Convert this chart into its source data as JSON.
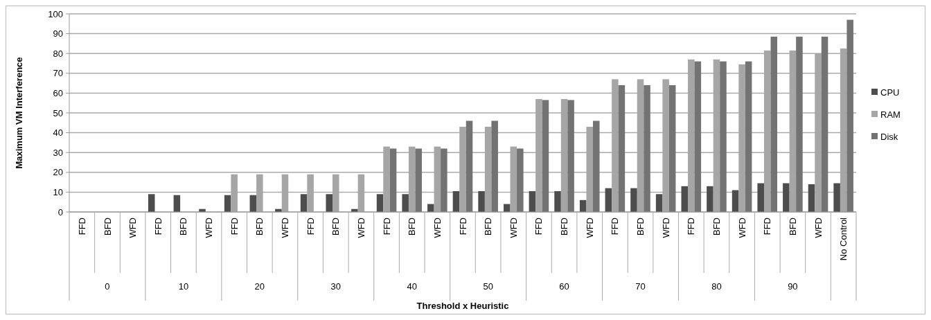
{
  "chart_data": {
    "type": "bar",
    "xlabel": "Threshold x Heuristic",
    "ylabel": "Maximum VM Interference",
    "categories": [
      "FFD",
      "BFD",
      "WFD",
      "FFD",
      "BFD",
      "WFD",
      "FFD",
      "BFD",
      "WFD",
      "FFD",
      "BFD",
      "WFD",
      "FFD",
      "BFD",
      "WFD",
      "FFD",
      "BFD",
      "WFD",
      "FFD",
      "BFD",
      "WFD",
      "FFD",
      "BFD",
      "WFD",
      "FFD",
      "BFD",
      "WFD",
      "FFD",
      "BFD",
      "WFD",
      "No Control"
    ],
    "annotations": [
      "0",
      "10",
      "20",
      "30",
      "40",
      "50",
      "60",
      "70",
      "80",
      "90"
    ],
    "series": [
      {
        "name": "CPU",
        "color": "#4d4d4d",
        "values": [
          0,
          0,
          0,
          9,
          8.5,
          1.5,
          8.5,
          8.5,
          1.5,
          9,
          9,
          1.5,
          9,
          9,
          4,
          10.5,
          10.5,
          4,
          10.5,
          10.5,
          6,
          12,
          12,
          9,
          13,
          13,
          11,
          14.5,
          14.5,
          14,
          14.5
        ]
      },
      {
        "name": "RAM",
        "color": "#a6a6a6",
        "values": [
          0,
          0,
          0,
          0,
          0,
          0,
          19,
          19,
          19,
          19,
          19,
          19,
          33,
          33,
          33,
          43,
          43,
          33,
          57,
          57,
          43,
          67,
          67,
          67,
          77,
          77,
          74.5,
          81.5,
          81.5,
          80,
          82.5
        ]
      },
      {
        "name": "Disk",
        "color": "#737373",
        "values": [
          0,
          0,
          0,
          0,
          0,
          0,
          0,
          0,
          0,
          0,
          0,
          0,
          32,
          32,
          32,
          46,
          46,
          32,
          56.5,
          56.5,
          46,
          64,
          64,
          64,
          76,
          76,
          76,
          88.5,
          88.5,
          88.5,
          97
        ]
      }
    ],
    "ylim": [
      0,
      100
    ],
    "yticks": [
      0,
      10,
      20,
      30,
      40,
      50,
      60,
      70,
      80,
      90,
      100
    ],
    "grid": "y",
    "legend": "right"
  }
}
